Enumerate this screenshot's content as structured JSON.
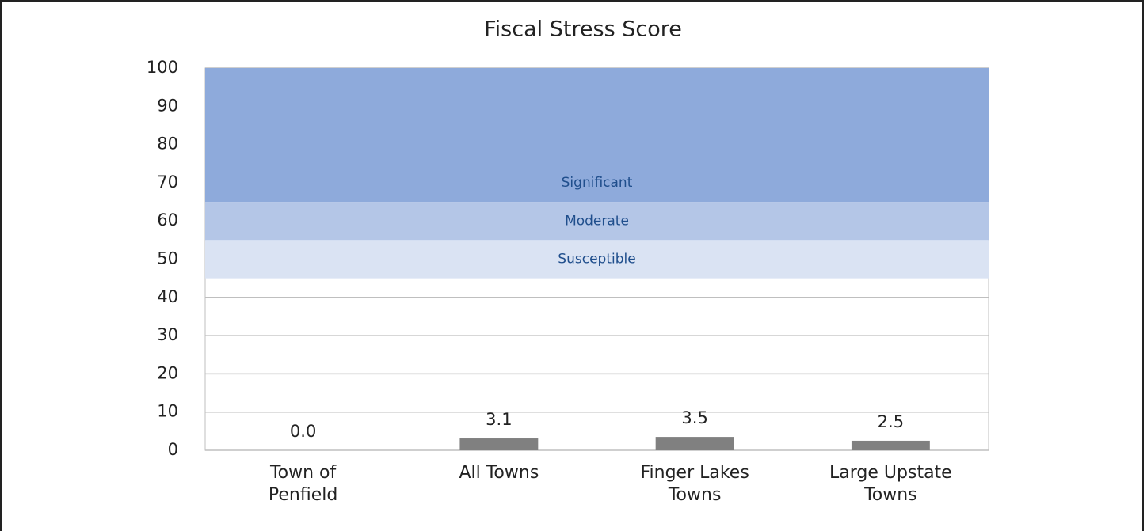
{
  "chart_data": {
    "type": "bar",
    "title": "Fiscal Stress Score",
    "categories": [
      [
        "Town of",
        "Penfield"
      ],
      [
        "All Towns"
      ],
      [
        "Finger Lakes",
        "Towns"
      ],
      [
        "Large Upstate",
        "Towns"
      ]
    ],
    "values": [
      0,
      3.1,
      3.5,
      2.5
    ],
    "value_labels": [
      "0.0",
      "3.1",
      "3.5",
      "2.5"
    ],
    "color": "#808080",
    "ylim": [
      0,
      100
    ],
    "yticks": [
      0,
      10,
      20,
      30,
      40,
      50,
      60,
      70,
      80,
      90,
      100
    ],
    "grid": true,
    "bands": [
      {
        "label": "Significant",
        "from": 65,
        "to": 100,
        "color": "#8eaadb"
      },
      {
        "label": "Moderate",
        "from": 55,
        "to": 65,
        "color": "#b4c6e7"
      },
      {
        "label": "Susceptible",
        "from": 45,
        "to": 55,
        "color": "#dae3f3"
      }
    ]
  }
}
